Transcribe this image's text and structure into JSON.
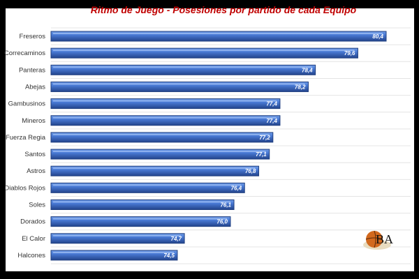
{
  "chart_data": {
    "type": "bar",
    "orientation": "horizontal",
    "title": "Ritmo de Juego - Posesiones por partido de cada Equipo",
    "categories": [
      "Freseros",
      "Correcaminos",
      "Panteras",
      "Abejas",
      "Gambusinos",
      "Mineros",
      "Fuerza Regia",
      "Santos",
      "Astros",
      "Diablos Rojos",
      "Soles",
      "Dorados",
      "El Calor",
      "Halcones"
    ],
    "values": [
      80.4,
      79.6,
      78.4,
      78.2,
      77.4,
      77.4,
      77.2,
      77.1,
      76.8,
      76.4,
      76.1,
      76.0,
      74.7,
      74.5
    ],
    "labels": [
      "80,4",
      "79,6",
      "78,4",
      "78,2",
      "77,4",
      "77,4",
      "77,2",
      "77,1",
      "76,8",
      "76,4",
      "76,1",
      "76,0",
      "74,7",
      "74,5"
    ],
    "xlim": [
      71,
      81.1
    ],
    "grid": true,
    "legend": "none",
    "colors": {
      "bar": "#3a6fc9",
      "bar_dark": "#1f3f80",
      "title": "#c00000"
    }
  },
  "logo": {
    "text": "BA"
  }
}
